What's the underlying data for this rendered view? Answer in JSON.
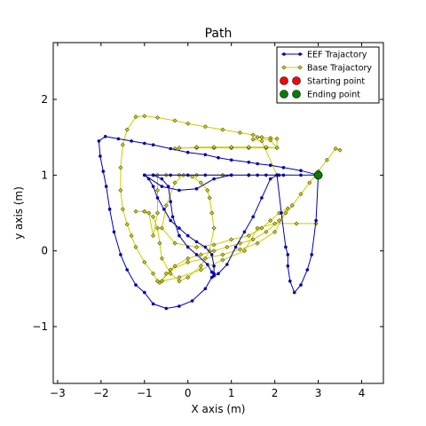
{
  "chart_data": {
    "type": "line",
    "title": "Path",
    "xlabel": "X axis (m)",
    "ylabel": "y axis (m)",
    "xlim": [
      -3.1,
      4.5
    ],
    "ylim": [
      -1.75,
      2.75
    ],
    "xticks": [
      -3,
      -2,
      -1,
      0,
      1,
      2,
      3,
      4
    ],
    "yticks": [
      -1,
      0,
      1,
      2
    ],
    "xtick_labels": [
      "−3",
      "−2",
      "−1",
      "0",
      "1",
      "2",
      "3",
      "4"
    ],
    "ytick_labels": [
      "−1",
      "0",
      "1",
      "2"
    ],
    "grid": false,
    "legend_position": "top-right",
    "legend": [
      {
        "label": "EEF Trajactory",
        "color": "#0000aa",
        "marker": "line-dot"
      },
      {
        "label": "Base Trajactory",
        "color": "#cccc00",
        "marker": "line-diamond"
      },
      {
        "label": "Starting point",
        "color": "#ff0000",
        "marker": "circle"
      },
      {
        "label": "Ending point",
        "color": "#008000",
        "marker": "circle"
      }
    ],
    "series": [
      {
        "name": "EEF Trajactory",
        "color": "#0000aa",
        "x": [
          3.0,
          2.6,
          2.2,
          1.9,
          1.6,
          1.4,
          1.0,
          0.7,
          0.4,
          0.0,
          -0.4,
          -0.8,
          -1.0,
          -1.3,
          -1.6,
          -1.9,
          -2.05,
          -2.02,
          -1.95,
          -1.88,
          -1.8,
          -1.7,
          -1.55,
          -1.4,
          -1.2,
          -1.0,
          -0.8,
          -0.5,
          -0.2,
          0.1,
          0.4,
          0.55,
          0.6,
          0.6,
          0.55,
          0.4,
          0.2,
          0.0,
          -0.2,
          -0.4,
          -0.55,
          -0.7,
          -0.8,
          -0.9,
          -1.0,
          -0.8,
          -0.6,
          -0.45,
          -0.4,
          -0.35,
          -0.2,
          0.0,
          0.2,
          0.45,
          0.55,
          0.6,
          0.7,
          0.9,
          1.1,
          1.3,
          1.5,
          1.7,
          1.9,
          2.05,
          2.15,
          2.25,
          2.3,
          2.3,
          2.35,
          2.45,
          2.6,
          2.75,
          2.85,
          2.95,
          3.0,
          2.6,
          2.2,
          1.6,
          1.0,
          0.4,
          0.0,
          -0.4,
          -0.8,
          -1.0,
          -0.6,
          -0.2,
          0.2,
          0.6,
          1.0,
          1.4,
          1.8,
          2.1
        ],
        "y": [
          1.0,
          1.06,
          1.1,
          1.13,
          1.15,
          1.17,
          1.2,
          1.23,
          1.27,
          1.3,
          1.35,
          1.4,
          1.42,
          1.45,
          1.48,
          1.51,
          1.45,
          1.25,
          1.05,
          0.85,
          0.55,
          0.25,
          -0.05,
          -0.25,
          -0.45,
          -0.55,
          -0.7,
          -0.76,
          -0.73,
          -0.66,
          -0.5,
          -0.35,
          -0.3,
          -0.2,
          -0.05,
          0.05,
          0.12,
          0.2,
          0.3,
          0.4,
          0.55,
          0.7,
          0.85,
          0.95,
          1.0,
          1.0,
          0.95,
          0.85,
          0.65,
          0.45,
          0.2,
          0.05,
          -0.05,
          -0.18,
          -0.28,
          -0.33,
          -0.3,
          -0.18,
          0.05,
          0.25,
          0.45,
          0.7,
          0.95,
          1.0,
          0.5,
          0.05,
          -0.05,
          -0.2,
          -0.4,
          -0.55,
          -0.45,
          -0.25,
          -0.05,
          0.4,
          1.0,
          1.0,
          1.0,
          1.0,
          1.0,
          1.0,
          1.0,
          1.0,
          1.0,
          1.0,
          0.85,
          0.8,
          0.82,
          0.95,
          1.0,
          1.0,
          1.0,
          1.0
        ]
      },
      {
        "name": "Base Trajactory",
        "color": "#cccc00",
        "x": [
          3.5,
          3.4,
          3.2,
          3.0,
          2.8,
          2.6,
          2.4,
          2.25,
          2.1,
          1.8,
          1.5,
          1.2,
          0.9,
          0.6,
          0.3,
          0.0,
          -0.3,
          -0.5,
          -0.6,
          -0.65,
          -0.7,
          -0.8,
          -1.0,
          -1.2,
          -1.3,
          -1.4,
          -1.5,
          -1.55,
          -1.55,
          -1.5,
          -1.4,
          -1.2,
          -1.0,
          -0.7,
          -0.3,
          0.0,
          0.4,
          0.8,
          1.2,
          1.5,
          1.7,
          1.9,
          2.05,
          2.05,
          1.8,
          1.4,
          1.0,
          0.6,
          0.2,
          -0.2,
          -0.3,
          0.2,
          0.6,
          1.0,
          1.4,
          1.8,
          2.05,
          1.9,
          1.6,
          1.5,
          1.7,
          2.05,
          1.4,
          0.8,
          0.2,
          -0.2,
          -0.5,
          -0.7,
          -0.7,
          -0.7,
          -0.8,
          -0.9,
          -1.0,
          -1.2,
          -1.0,
          -0.8,
          -0.7,
          -0.65,
          -0.6,
          -0.4,
          -0.2,
          0.0,
          0.3,
          0.5,
          0.6,
          0.55,
          0.5,
          0.45,
          0.3,
          0.1,
          -0.1,
          -0.3,
          -0.5,
          -0.6,
          -0.3,
          0.2,
          0.6,
          1.0,
          1.4,
          1.7,
          1.9,
          2.1,
          2.3,
          2.0,
          1.6,
          1.2,
          0.8,
          0.4,
          0.0,
          -0.4,
          -0.6,
          -0.2,
          0.3,
          0.8,
          1.3,
          1.6,
          2.0,
          2.5,
          2.95
        ],
        "y": [
          1.33,
          1.35,
          1.2,
          1.05,
          0.9,
          0.75,
          0.6,
          0.5,
          0.4,
          0.25,
          0.15,
          0.1,
          0.05,
          0.0,
          -0.05,
          -0.1,
          -0.2,
          -0.3,
          -0.4,
          -0.42,
          -0.4,
          -0.3,
          -0.15,
          0.05,
          0.2,
          0.35,
          0.55,
          0.8,
          1.1,
          1.4,
          1.6,
          1.77,
          1.78,
          1.76,
          1.72,
          1.68,
          1.64,
          1.6,
          1.56,
          1.53,
          1.5,
          1.49,
          1.48,
          1.36,
          1.36,
          1.36,
          1.36,
          1.36,
          1.36,
          1.36,
          1.35,
          1.37,
          1.37,
          1.37,
          1.37,
          1.37,
          1.36,
          1.46,
          1.5,
          1.47,
          1.45,
          1.0,
          1.0,
          1.0,
          1.0,
          1.0,
          1.0,
          1.0,
          0.8,
          0.5,
          0.2,
          0.5,
          0.52,
          0.52,
          0.52,
          0.45,
          0.3,
          0.1,
          -0.1,
          -0.3,
          -0.4,
          -0.35,
          -0.2,
          0.0,
          0.3,
          0.5,
          0.7,
          0.8,
          0.9,
          0.98,
          1.0,
          0.9,
          0.6,
          0.3,
          0.1,
          0.05,
          0.08,
          0.15,
          0.2,
          0.3,
          0.4,
          0.5,
          0.56,
          0.25,
          0.1,
          0.02,
          -0.05,
          -0.1,
          -0.15,
          -0.25,
          -0.4,
          -0.35,
          -0.25,
          -0.12,
          0.0,
          0.3,
          0.36,
          0.36,
          0.36
        ]
      }
    ],
    "points": [
      {
        "name": "Starting point",
        "x": 3.0,
        "y": 1.0,
        "color": "#ff0000"
      },
      {
        "name": "Ending point",
        "x": 3.0,
        "y": 1.0,
        "color": "#008000"
      }
    ]
  }
}
